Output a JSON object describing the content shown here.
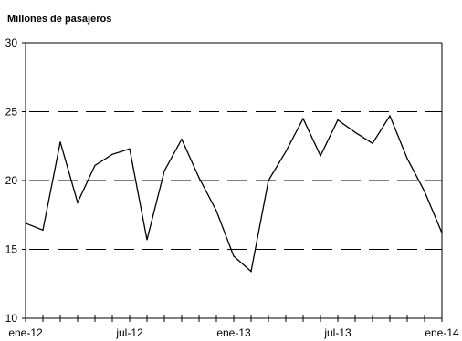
{
  "chart_data": {
    "type": "line",
    "title": "",
    "unit_label": "Millones de pasajeros",
    "xlabel": "",
    "ylabel": "",
    "ylim": [
      10,
      30
    ],
    "yticks": [
      10,
      15,
      20,
      25,
      30
    ],
    "y_tick_labels": [
      "10",
      "15",
      "20",
      "25",
      "30"
    ],
    "grid": "dashed horizontal lines at 15, 20 and 25",
    "legend": "none",
    "x_tick_labels": [
      {
        "index": 0,
        "label": "ene-12"
      },
      {
        "index": 6,
        "label": "jul-12"
      },
      {
        "index": 12,
        "label": "ene-13"
      },
      {
        "index": 18,
        "label": "jul-13"
      },
      {
        "index": 24,
        "label": "ene-14"
      }
    ],
    "x_count": 25,
    "series": [
      {
        "color": "#000000",
        "values": [
          16.9,
          16.4,
          22.8,
          18.4,
          21.1,
          21.9,
          22.3,
          15.7,
          20.7,
          23.0,
          20.2,
          17.8,
          14.5,
          13.4,
          20.0,
          22.1,
          24.5,
          21.8,
          24.4,
          23.5,
          22.7,
          24.7,
          21.6,
          19.2,
          16.2
        ]
      }
    ]
  }
}
